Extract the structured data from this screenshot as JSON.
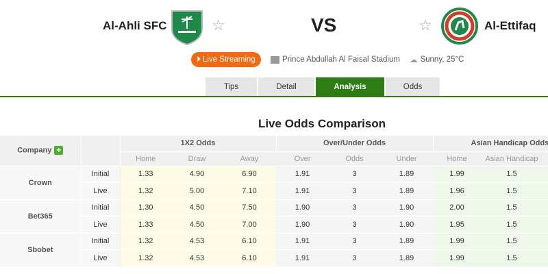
{
  "match": {
    "home": "Al-Ahli SFC",
    "away": "Al-Ettifaq",
    "vs": "VS"
  },
  "info": {
    "live_label": "Live Streaming",
    "stadium": "Prince Abdullah Al Faisal Stadium",
    "weather": "Sunny, 25°C"
  },
  "tabs": [
    {
      "label": "Tips"
    },
    {
      "label": "Detail"
    },
    {
      "label": "Analysis",
      "active": true
    },
    {
      "label": "Odds"
    }
  ],
  "section_title": "Live Odds Comparison",
  "table": {
    "company_header": "Company",
    "groups": [
      "1X2 Odds",
      "Over/Under Odds",
      "Asian Handicap Odds"
    ],
    "sub": [
      "Home",
      "Draw",
      "Away",
      "Over",
      "Odds",
      "Under",
      "Home",
      "Asian Handicap"
    ],
    "companies": [
      {
        "name": "Crown",
        "rows": [
          {
            "type": "Initial",
            "v": [
              "1.33",
              "4.90",
              "6.90",
              "1.91",
              "3",
              "1.89",
              "1.99",
              "1.5"
            ]
          },
          {
            "type": "Live",
            "v": [
              "1.32",
              "5.00",
              "7.10",
              "1.91",
              "3",
              "1.89",
              "1.96",
              "1.5"
            ]
          }
        ]
      },
      {
        "name": "Bet365",
        "rows": [
          {
            "type": "Initial",
            "v": [
              "1.30",
              "4.50",
              "7.50",
              "1.90",
              "3",
              "1.90",
              "2.00",
              "1.5"
            ]
          },
          {
            "type": "Live",
            "v": [
              "1.33",
              "4.50",
              "7.00",
              "1.90",
              "3",
              "1.90",
              "1.95",
              "1.5"
            ]
          }
        ]
      },
      {
        "name": "Sbobet",
        "rows": [
          {
            "type": "Initial",
            "v": [
              "1.32",
              "4.53",
              "6.10",
              "1.91",
              "3",
              "1.89",
              "1.99",
              "1.5"
            ]
          },
          {
            "type": "Live",
            "v": [
              "1.32",
              "4.53",
              "6.10",
              "1.91",
              "3",
              "1.89",
              "1.99",
              "1.5"
            ]
          }
        ]
      }
    ]
  },
  "colors": {
    "accent": "#2e7d14",
    "live": "#f26a10"
  }
}
